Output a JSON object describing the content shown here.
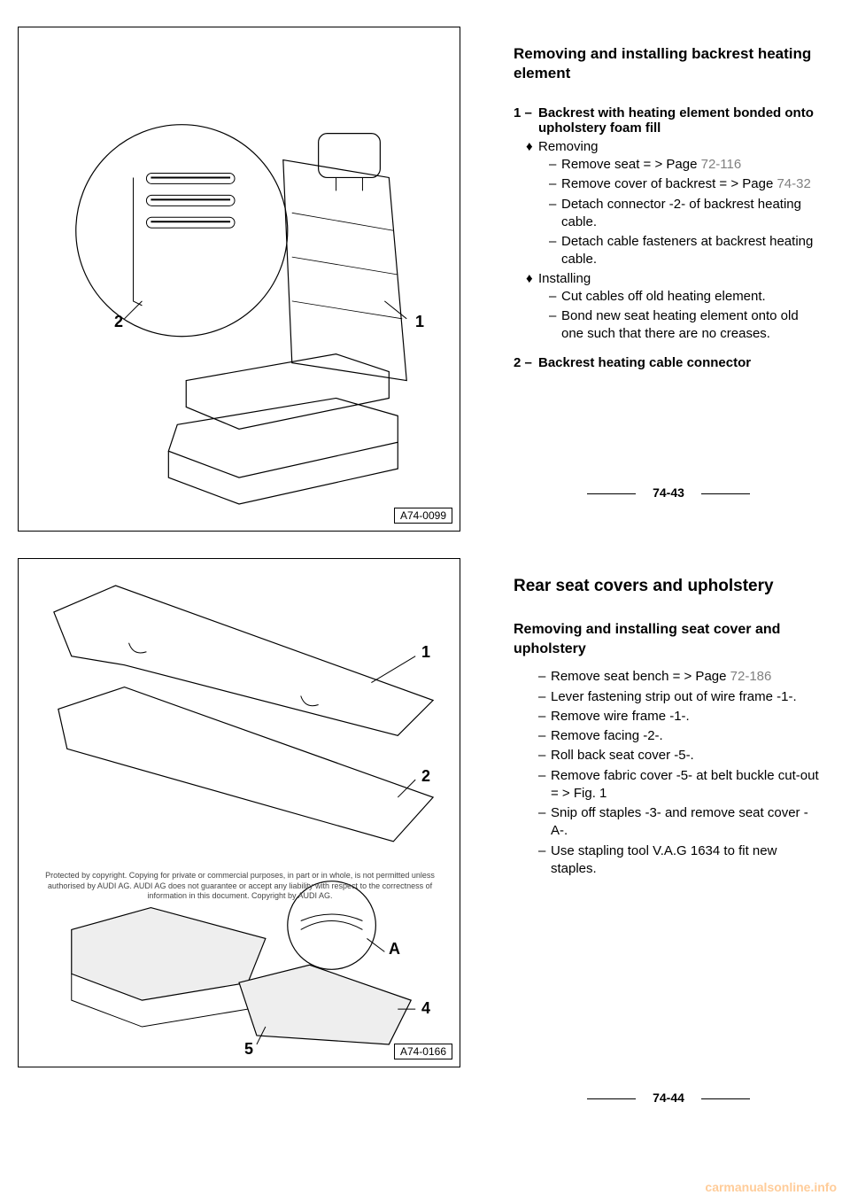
{
  "section1": {
    "figure_code": "A74-0099",
    "callouts": {
      "1": "1",
      "2": "2"
    },
    "heading": "Removing and installing backrest heating element",
    "item1_num": "1 –",
    "item1_text": "Backrest with heating element bonded onto upholstery foam fill",
    "removing_label": "Removing",
    "removing_steps": [
      {
        "pre": "Remove seat  = >  Page  ",
        "page": "72-116"
      },
      {
        "pre": "Remove cover of backrest  = > Page  ",
        "page": "74-32"
      },
      {
        "pre": "Detach connector -2- of backrest heating cable.",
        "page": ""
      },
      {
        "pre": "Detach cable fasteners at backrest heating cable.",
        "page": ""
      }
    ],
    "installing_label": "Installing",
    "installing_steps": [
      "Cut cables off old heating element.",
      "Bond new seat heating element onto old one such that there are no creases."
    ],
    "item2_num": "2 –",
    "item2_text": "Backrest heating cable connector",
    "page_num": "74-43"
  },
  "section2": {
    "figure_code": "A74-0166",
    "callouts": {
      "1": "1",
      "2": "2",
      "4": "4",
      "5": "5",
      "A": "A"
    },
    "copyright": "Protected by copyright. Copying for private or commercial purposes, in part or in whole, is not permitted unless authorised by AUDI AG. AUDI AG does not guarantee or accept any liability with respect to the correctness of information in this document. Copyright by AUDI AG.",
    "heading": "Rear seat covers and upholstery",
    "subheading": "Removing and installing seat cover and upholstery",
    "steps": [
      {
        "pre": "Remove seat bench  = >  Page ",
        "page": "72-186"
      },
      {
        "pre": "Lever fastening strip out of wire frame -1-.",
        "page": ""
      },
      {
        "pre": "Remove wire frame -1-.",
        "page": ""
      },
      {
        "pre": "Remove facing -2-.",
        "page": ""
      },
      {
        "pre": "Roll back seat cover -5-.",
        "page": ""
      },
      {
        "pre": "Remove fabric cover -5- at belt buckle cut-out  = >  Fig. 1",
        "page": ""
      },
      {
        "pre": "Snip off staples -3- and remove seat cover -A-.",
        "page": ""
      },
      {
        "pre": "Use stapling tool V.A.G 1634 to fit new staples.",
        "page": ""
      }
    ],
    "page_num": "74-44"
  },
  "watermark": "carmanualsonline.info"
}
